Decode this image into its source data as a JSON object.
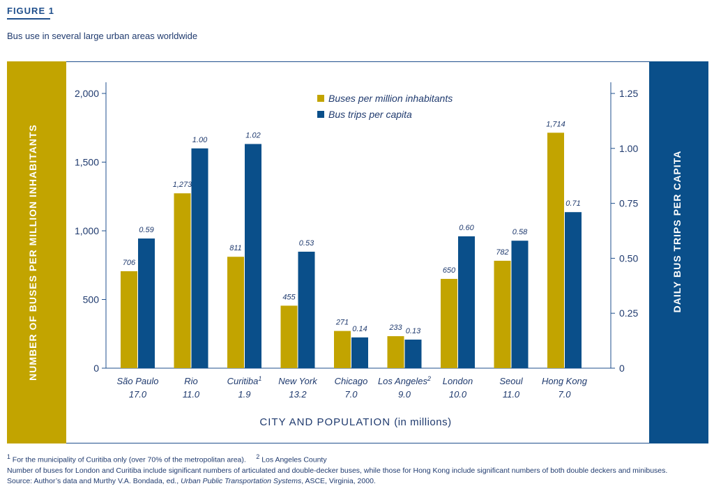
{
  "figure_label": "FIGURE 1",
  "title": "Bus use in several large urban areas worldwide",
  "colors": {
    "buses": "#c2a400",
    "trips": "#0a4f8a",
    "text": "#1f3a6e"
  },
  "chart_data": {
    "type": "bar",
    "categories": [
      "São Paulo",
      "Rio",
      "Curitiba",
      "New York",
      "Chicago",
      "Los Angeles",
      "London",
      "Seoul",
      "Hong Kong"
    ],
    "category_superscripts": [
      "",
      "",
      "1",
      "",
      "",
      "2",
      "",
      "",
      ""
    ],
    "populations": [
      "17.0",
      "11.0",
      "1.9",
      "13.2",
      "7.0",
      "9.0",
      "10.0",
      "11.0",
      "7.0"
    ],
    "series": [
      {
        "name": "Buses per million inhabitants",
        "axis": "left",
        "values": [
          706,
          1273,
          811,
          455,
          271,
          233,
          650,
          782,
          1714
        ],
        "labels": [
          "706",
          "1,273",
          "811",
          "455",
          "271",
          "233",
          "650",
          "782",
          "1,714"
        ]
      },
      {
        "name": "Bus trips per capita",
        "axis": "right",
        "values": [
          0.59,
          1.0,
          1.02,
          0.53,
          0.14,
          0.13,
          0.6,
          0.58,
          0.71
        ],
        "labels": [
          "0.59",
          "1.00",
          "1.02",
          "0.53",
          "0.14",
          "0.13",
          "0.60",
          "0.58",
          "0.71"
        ]
      }
    ],
    "ylabel_left": "NUMBER OF BUSES PER MILLION INHABITANTS",
    "ylabel_right": "DAILY BUS TRIPS PER CAPITA",
    "xlabel": "CITY AND POPULATION",
    "xlabel_unit": "(in millions)",
    "ylim_left": [
      0,
      2000
    ],
    "ylim_right": [
      0,
      1.25
    ],
    "yticks_left": [
      0,
      500,
      1000,
      1500,
      2000
    ],
    "yticks_left_labels": [
      "0",
      "500",
      "1,000",
      "1,500",
      "2,000"
    ],
    "yticks_right": [
      0,
      0.25,
      0.5,
      0.75,
      1.0,
      1.25
    ],
    "yticks_right_labels": [
      "0",
      "0.25",
      "0.50",
      "0.75",
      "1.00",
      "1.25"
    ],
    "legend_position": "top-center",
    "grid": false
  },
  "notes": {
    "note1_sup": "1",
    "note1": "For the municipality of Curitiba only (over 70% of the metropolitan area).",
    "note2_sup": "2",
    "note2": "Los Angeles County",
    "note3": "Number of buses for London and Curitiba include significant numbers of articulated and double-decker buses, while those for Hong Kong include significant numbers of both double deckers and minibuses.",
    "source_prefix": "Source: Author’s data and Murthy V.A. Bondada, ed., ",
    "source_title": "Urban Public Transportation Systems",
    "source_suffix": ", ASCE, Virginia, 2000."
  }
}
